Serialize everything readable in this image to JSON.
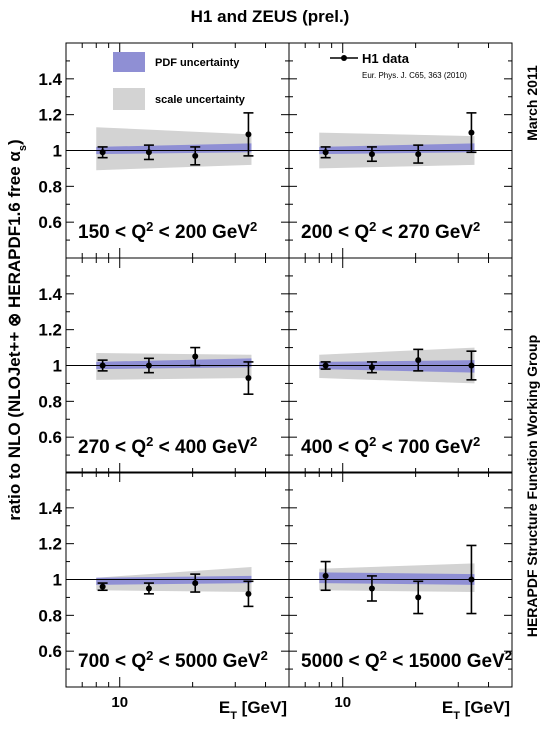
{
  "chart_data": {
    "type": "scatter",
    "title": "H1 and ZEUS (prel.)",
    "ylabel": "ratio to NLO (NLOJet++ ⊗ HERAPDF1.6 free αs)",
    "xlabel": "E_T [GeV]",
    "xscale": "log",
    "xlim": [
      6,
      50
    ],
    "ylim": [
      0.4,
      1.6
    ],
    "yticks": [
      0.6,
      0.8,
      1,
      1.2,
      1.4
    ],
    "ytick_labels": [
      "0.6",
      "0.8",
      "1",
      "1.2",
      "1.4"
    ],
    "xtick_labels": [
      "10"
    ],
    "reference_line": 1,
    "side_text_top": "March 2011",
    "side_text_bottom": "HERAPDF Structure Function Working Group",
    "legend": {
      "pdf": "PDF uncertainty",
      "scale": "scale uncertainty",
      "data": "H1 data",
      "data_ref": "Eur. Phys. J. C65, 363 (2010)"
    },
    "colors": {
      "pdf_band": "#8f8fd4",
      "scale_band": "#d3d3d3",
      "data": "#000000"
    },
    "panels": [
      {
        "label": "150 < Q² < 200 GeV²",
        "points": [
          {
            "x": 8.5,
            "y": 0.99,
            "err": 0.03
          },
          {
            "x": 13.2,
            "y": 0.99,
            "err": 0.04
          },
          {
            "x": 20.5,
            "y": 0.97,
            "err": 0.05
          },
          {
            "x": 34,
            "y": 1.09,
            "err": 0.12
          }
        ],
        "scale_band": [
          {
            "x": 8,
            "lo": 0.89,
            "hi": 1.13
          },
          {
            "x": 35,
            "lo": 0.92,
            "hi": 1.09
          }
        ],
        "pdf_band": [
          {
            "x": 8,
            "lo": 0.98,
            "hi": 1.02
          },
          {
            "x": 35,
            "lo": 0.99,
            "hi": 1.04
          }
        ]
      },
      {
        "label": "200 < Q² < 270 GeV²",
        "points": [
          {
            "x": 8.5,
            "y": 0.99,
            "err": 0.03
          },
          {
            "x": 13.2,
            "y": 0.98,
            "err": 0.04
          },
          {
            "x": 20.5,
            "y": 0.98,
            "err": 0.05
          },
          {
            "x": 34,
            "y": 1.1,
            "err": 0.11
          }
        ],
        "scale_band": [
          {
            "x": 8,
            "lo": 0.9,
            "hi": 1.1
          },
          {
            "x": 35,
            "lo": 0.92,
            "hi": 1.08
          }
        ],
        "pdf_band": [
          {
            "x": 8,
            "lo": 0.98,
            "hi": 1.02
          },
          {
            "x": 35,
            "lo": 0.99,
            "hi": 1.04
          }
        ]
      },
      {
        "label": "270 < Q² < 400 GeV²",
        "points": [
          {
            "x": 8.5,
            "y": 1.0,
            "err": 0.03
          },
          {
            "x": 13.2,
            "y": 1.0,
            "err": 0.04
          },
          {
            "x": 20.5,
            "y": 1.05,
            "err": 0.05
          },
          {
            "x": 34,
            "y": 0.93,
            "err": 0.09
          }
        ],
        "scale_band": [
          {
            "x": 8,
            "lo": 0.92,
            "hi": 1.07
          },
          {
            "x": 35,
            "lo": 0.93,
            "hi": 1.06
          }
        ],
        "pdf_band": [
          {
            "x": 8,
            "lo": 0.98,
            "hi": 1.02
          },
          {
            "x": 35,
            "lo": 0.99,
            "hi": 1.04
          }
        ]
      },
      {
        "label": "400 < Q² < 700 GeV²",
        "points": [
          {
            "x": 8.5,
            "y": 1.0,
            "err": 0.02
          },
          {
            "x": 13.2,
            "y": 0.99,
            "err": 0.03
          },
          {
            "x": 20.5,
            "y": 1.03,
            "err": 0.06
          },
          {
            "x": 34,
            "y": 1.0,
            "err": 0.08
          }
        ],
        "scale_band": [
          {
            "x": 8,
            "lo": 0.93,
            "hi": 1.06
          },
          {
            "x": 35,
            "lo": 0.9,
            "hi": 1.1
          }
        ],
        "pdf_band": [
          {
            "x": 8,
            "lo": 0.98,
            "hi": 1.02
          },
          {
            "x": 35,
            "lo": 0.96,
            "hi": 1.03
          }
        ]
      },
      {
        "label": "700 < Q² < 5000 GeV²",
        "points": [
          {
            "x": 8.5,
            "y": 0.96,
            "err": 0.02
          },
          {
            "x": 13.2,
            "y": 0.95,
            "err": 0.03
          },
          {
            "x": 20.5,
            "y": 0.98,
            "err": 0.05
          },
          {
            "x": 34,
            "y": 0.92,
            "err": 0.07
          }
        ],
        "scale_band": [
          {
            "x": 8,
            "lo": 0.94,
            "hi": 1.01
          },
          {
            "x": 35,
            "lo": 0.93,
            "hi": 1.07
          }
        ],
        "pdf_band": [
          {
            "x": 8,
            "lo": 0.97,
            "hi": 1.01
          },
          {
            "x": 35,
            "lo": 0.98,
            "hi": 1.02
          }
        ]
      },
      {
        "label": "5000 < Q² < 15000 GeV²",
        "points": [
          {
            "x": 8.5,
            "y": 1.02,
            "err": 0.08
          },
          {
            "x": 13.2,
            "y": 0.95,
            "err": 0.07
          },
          {
            "x": 20.5,
            "y": 0.9,
            "err": 0.09
          },
          {
            "x": 34,
            "y": 1.0,
            "err": 0.19
          }
        ],
        "scale_band": [
          {
            "x": 8,
            "lo": 0.94,
            "hi": 1.06
          },
          {
            "x": 35,
            "lo": 0.93,
            "hi": 1.09
          }
        ],
        "pdf_band": [
          {
            "x": 8,
            "lo": 0.98,
            "hi": 1.04
          },
          {
            "x": 35,
            "lo": 0.97,
            "hi": 1.03
          }
        ]
      }
    ]
  }
}
